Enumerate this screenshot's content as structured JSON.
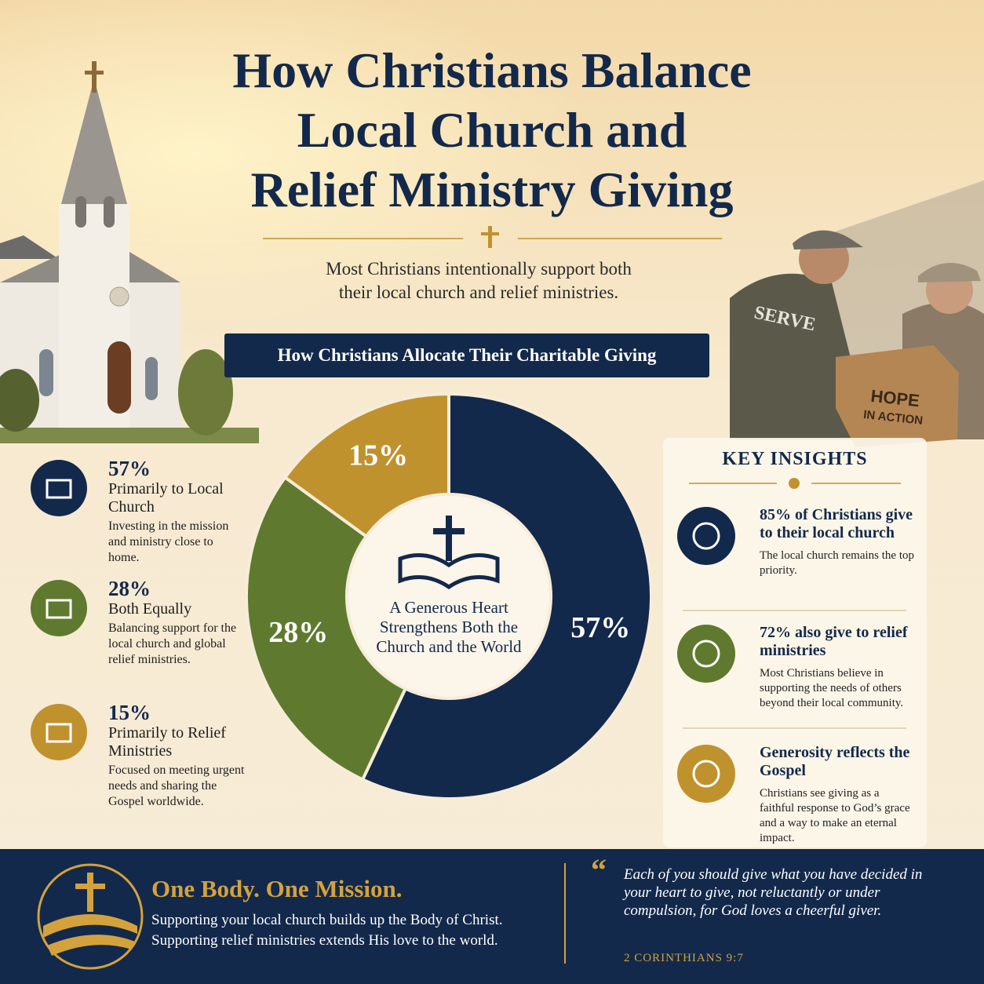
{
  "title": "How Christians Balance\nLocal Church and\nRelief Ministry Giving",
  "subtitle": "Most Christians intentionally support both\ntheir local church and relief ministries.",
  "photo_labels": [
    "SERVE",
    "HOPE\nIN ACTION"
  ],
  "chart_data": {
    "type": "pie",
    "donut": true,
    "title": "How Christians Allocate Their Charitable Giving",
    "center_text": "A Generous Heart Strengthens Both the Church and the World",
    "categories": [
      "Primarily to Local Church",
      "Both Equally",
      "Primarily to Relief Ministries"
    ],
    "values": [
      57,
      28,
      15
    ],
    "value_labels": [
      "57%",
      "28%",
      "15%"
    ],
    "colors": [
      "#13294b",
      "#5f7a2e",
      "#c0922e"
    ],
    "descriptions": [
      "Investing in the mission and ministry close to home.",
      "Balancing support for the local church and global relief ministries.",
      "Focused on meeting urgent needs and sharing the Gospel worldwide."
    ]
  },
  "key_insights": {
    "title": "KEY INSIGHTS",
    "items": [
      {
        "headline": "85% of Christians give to their local church",
        "text": "The local church remains the top priority."
      },
      {
        "headline": "72% also give to relief ministries",
        "text": "Most Christians believe in supporting the needs of others beyond their local community."
      },
      {
        "headline": "Generosity reflects the Gospel",
        "text": "Christians see giving as a faithful response to God’s grace and a way to make an eternal impact."
      }
    ]
  },
  "footer": {
    "heading": "One Body. One Mission.",
    "text": "Supporting your local church builds up the Body of Christ. Supporting relief ministries extends His love to the world.",
    "quote": "Each of you should give what you have decided in your heart to give, not reluctantly or under compulsion, for God loves a cheerful giver.",
    "reference": "2 CORINTHIANS 9:7"
  }
}
